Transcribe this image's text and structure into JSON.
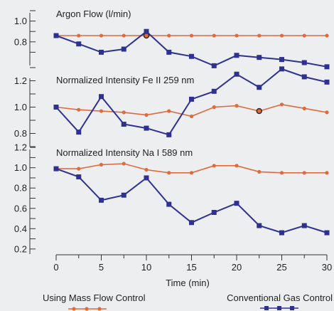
{
  "chart_data": {
    "type": "line",
    "x": [
      0,
      2.5,
      5,
      7.5,
      10,
      12.5,
      15,
      17.5,
      20,
      22.5,
      25,
      27.5,
      30
    ],
    "xlabel": "Time (min)",
    "xlim": [
      0,
      30
    ],
    "xticks": [
      0,
      5,
      10,
      15,
      20,
      25,
      30
    ],
    "colors": {
      "mass_flow": "#e06a3c",
      "conventional": "#2e3192",
      "marker_outline": "#222222"
    },
    "panels": [
      {
        "title": "Argon Flow (l/min)",
        "ylim": [
          0.6,
          1.1
        ],
        "yticks": [
          0.8,
          1.0
        ],
        "series": [
          {
            "name": "Using Mass Flow Control",
            "key": "mass_flow",
            "values": [
              0.86,
              0.86,
              0.86,
              0.86,
              0.86,
              0.86,
              0.86,
              0.86,
              0.86,
              0.86,
              0.86,
              0.86,
              0.86
            ]
          },
          {
            "name": "Conventional Gas Control",
            "key": "conventional",
            "values": [
              0.86,
              0.78,
              0.7,
              0.73,
              0.9,
              0.7,
              0.66,
              0.57,
              0.67,
              0.65,
              0.63,
              0.6,
              0.56
            ]
          }
        ],
        "highlight_index": 4
      },
      {
        "title": "Normalized Intensity  Fe II 259 nm",
        "ylim": [
          0.7,
          1.3
        ],
        "yticks": [
          0.8,
          1.0,
          1.2
        ],
        "series": [
          {
            "name": "Using Mass Flow Control",
            "key": "mass_flow",
            "values": [
              1.0,
              0.98,
              0.97,
              0.96,
              0.94,
              0.97,
              0.93,
              1.0,
              1.01,
              0.97,
              1.02,
              0.99,
              0.96
            ]
          },
          {
            "name": "Conventional Gas Control",
            "key": "conventional",
            "values": [
              1.0,
              0.81,
              1.08,
              0.87,
              0.84,
              0.79,
              1.06,
              1.12,
              1.25,
              1.15,
              1.29,
              1.23,
              1.19
            ]
          }
        ],
        "highlight_index": 9
      },
      {
        "title": "Normalized Intensity  Na I 589 nm",
        "ylim": [
          0.15,
          1.25
        ],
        "yticks": [
          0.2,
          0.4,
          0.6,
          0.8,
          1.0,
          1.2
        ],
        "series": [
          {
            "name": "Using Mass Flow Control",
            "key": "mass_flow",
            "values": [
              0.99,
              0.99,
              1.03,
              1.04,
              0.98,
              0.95,
              0.95,
              1.02,
              1.02,
              0.96,
              0.95,
              0.95,
              0.95
            ]
          },
          {
            "name": "Conventional Gas Control",
            "key": "conventional",
            "values": [
              0.99,
              0.91,
              0.68,
              0.73,
              0.9,
              0.64,
              0.46,
              0.56,
              0.65,
              0.43,
              0.36,
              0.43,
              0.36
            ]
          }
        ]
      }
    ],
    "legend": [
      {
        "label": "Using Mass Flow Control",
        "key": "mass_flow"
      },
      {
        "label": "Conventional Gas Control",
        "key": "conventional"
      }
    ]
  }
}
